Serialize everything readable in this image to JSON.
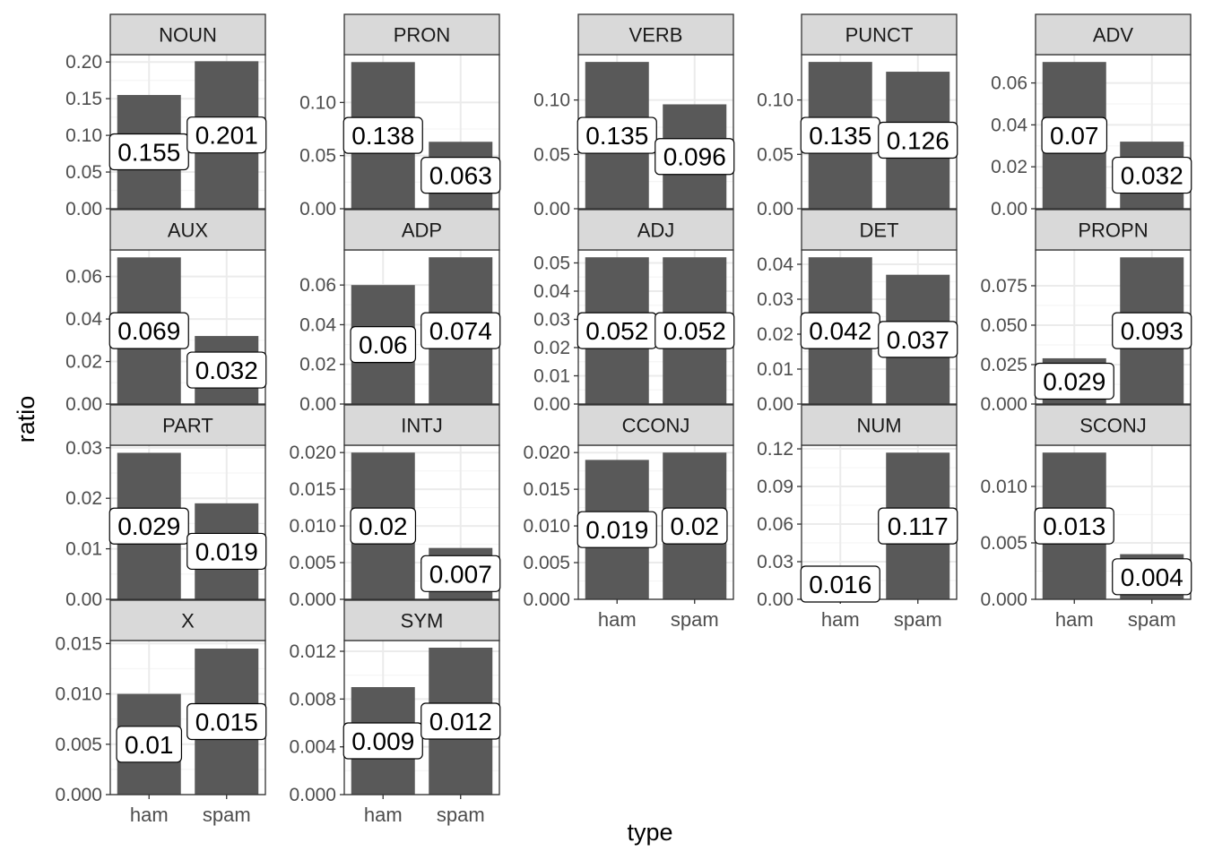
{
  "chart_data": {
    "type": "bar",
    "facet": "wrap",
    "ncol": 5,
    "xlabel": "type",
    "ylabel": "ratio",
    "categories": [
      "ham",
      "spam"
    ],
    "scales": "free_y",
    "grid": true,
    "legend": "none",
    "colors": {
      "bar": "#595959",
      "strip": "#d9d9d9",
      "panel_border": "#333333",
      "grid_major": "#ebebeb",
      "grid_minor": "#f5f5f5"
    },
    "panels": [
      {
        "name": "NOUN",
        "values": [
          0.155,
          0.201
        ],
        "labels": [
          "0.155",
          "0.201"
        ],
        "ylim": [
          0,
          0.21
        ],
        "ticks": [
          0.0,
          0.05,
          0.1,
          0.15,
          0.2
        ],
        "tick_labels": [
          "0.00",
          "0.05",
          "0.10",
          "0.15",
          "0.20"
        ]
      },
      {
        "name": "PRON",
        "values": [
          0.138,
          0.063
        ],
        "labels": [
          "0.138",
          "0.063"
        ],
        "ylim": [
          0,
          0.145
        ],
        "ticks": [
          0.0,
          0.05,
          0.1
        ],
        "tick_labels": [
          "0.00",
          "0.05",
          "0.10"
        ]
      },
      {
        "name": "VERB",
        "values": [
          0.135,
          0.096
        ],
        "labels": [
          "0.135",
          "0.096"
        ],
        "ylim": [
          0,
          0.1417
        ],
        "ticks": [
          0.0,
          0.05,
          0.1
        ],
        "tick_labels": [
          "0.00",
          "0.05",
          "0.10"
        ]
      },
      {
        "name": "PUNCT",
        "values": [
          0.135,
          0.126
        ],
        "labels": [
          "0.135",
          "0.126"
        ],
        "ylim": [
          0,
          0.1417
        ],
        "ticks": [
          0.0,
          0.05,
          0.1
        ],
        "tick_labels": [
          "0.00",
          "0.05",
          "0.10"
        ]
      },
      {
        "name": "ADV",
        "values": [
          0.07,
          0.032
        ],
        "labels": [
          "0.07",
          "0.032"
        ],
        "ylim": [
          0,
          0.0735
        ],
        "ticks": [
          0.0,
          0.02,
          0.04,
          0.06
        ],
        "tick_labels": [
          "0.00",
          "0.02",
          "0.04",
          "0.06"
        ]
      },
      {
        "name": "AUX",
        "values": [
          0.069,
          0.032
        ],
        "labels": [
          "0.069",
          "0.032"
        ],
        "ylim": [
          0,
          0.0725
        ],
        "ticks": [
          0.0,
          0.02,
          0.04,
          0.06
        ],
        "tick_labels": [
          "0.00",
          "0.02",
          "0.04",
          "0.06"
        ]
      },
      {
        "name": "ADP",
        "values": [
          0.06,
          0.074
        ],
        "labels": [
          "0.06",
          "0.074"
        ],
        "ylim": [
          0,
          0.0777
        ],
        "ticks": [
          0.0,
          0.02,
          0.04,
          0.06
        ],
        "tick_labels": [
          "0.00",
          "0.02",
          "0.04",
          "0.06"
        ]
      },
      {
        "name": "ADJ",
        "values": [
          0.052,
          0.052
        ],
        "labels": [
          "0.052",
          "0.052"
        ],
        "ylim": [
          0,
          0.0546
        ],
        "ticks": [
          0.0,
          0.01,
          0.02,
          0.03,
          0.04,
          0.05
        ],
        "tick_labels": [
          "0.00",
          "0.01",
          "0.02",
          "0.03",
          "0.04",
          "0.05"
        ]
      },
      {
        "name": "DET",
        "values": [
          0.042,
          0.037
        ],
        "labels": [
          "0.042",
          "0.037"
        ],
        "ylim": [
          0,
          0.0441
        ],
        "ticks": [
          0.0,
          0.01,
          0.02,
          0.03,
          0.04
        ],
        "tick_labels": [
          "0.00",
          "0.01",
          "0.02",
          "0.03",
          "0.04"
        ]
      },
      {
        "name": "PROPN",
        "values": [
          0.029,
          0.093
        ],
        "labels": [
          "0.029",
          "0.093"
        ],
        "ylim": [
          0,
          0.0977
        ],
        "ticks": [
          0.0,
          0.025,
          0.05,
          0.075
        ],
        "tick_labels": [
          "0.000",
          "0.025",
          "0.050",
          "0.075"
        ]
      },
      {
        "name": "PART",
        "values": [
          0.029,
          0.019
        ],
        "labels": [
          "0.029",
          "0.019"
        ],
        "ylim": [
          0,
          0.0305
        ],
        "ticks": [
          0.0,
          0.01,
          0.02,
          0.03
        ],
        "tick_labels": [
          "0.00",
          "0.01",
          "0.02",
          "0.03"
        ]
      },
      {
        "name": "INTJ",
        "values": [
          0.02,
          0.007
        ],
        "labels": [
          "0.02",
          "0.007"
        ],
        "ylim": [
          0,
          0.021
        ],
        "ticks": [
          0.0,
          0.005,
          0.01,
          0.015,
          0.02
        ],
        "tick_labels": [
          "0.000",
          "0.005",
          "0.010",
          "0.015",
          "0.020"
        ]
      },
      {
        "name": "CCONJ",
        "values": [
          0.019,
          0.02
        ],
        "labels": [
          "0.019",
          "0.02"
        ],
        "ylim": [
          0,
          0.021
        ],
        "ticks": [
          0.0,
          0.005,
          0.01,
          0.015,
          0.02
        ],
        "tick_labels": [
          "0.000",
          "0.005",
          "0.010",
          "0.015",
          "0.020"
        ]
      },
      {
        "name": "NUM",
        "values": [
          0.016,
          0.117
        ],
        "labels": [
          "0.016",
          "0.117"
        ],
        "ylim": [
          0,
          0.1229
        ],
        "ticks": [
          0.0,
          0.03,
          0.06,
          0.09,
          0.12
        ],
        "tick_labels": [
          "0.00",
          "0.03",
          "0.06",
          "0.09",
          "0.12"
        ]
      },
      {
        "name": "SCONJ",
        "values": [
          0.013,
          0.004
        ],
        "labels": [
          "0.013",
          "0.004"
        ],
        "ylim": [
          0,
          0.01365
        ],
        "ticks": [
          0.0,
          0.005,
          0.01
        ],
        "tick_labels": [
          "0.000",
          "0.005",
          "0.010"
        ]
      },
      {
        "name": "X",
        "values": [
          0.01,
          0.0145
        ],
        "labels": [
          "0.01",
          "0.015"
        ],
        "ylim": [
          0,
          0.0153
        ],
        "ticks": [
          0.0,
          0.005,
          0.01,
          0.015
        ],
        "tick_labels": [
          "0.000",
          "0.005",
          "0.010",
          "0.015"
        ]
      },
      {
        "name": "SYM",
        "values": [
          0.009,
          0.0123
        ],
        "labels": [
          "0.009",
          "0.012"
        ],
        "ylim": [
          0,
          0.0129
        ],
        "ticks": [
          0.0,
          0.004,
          0.008,
          0.012
        ],
        "tick_labels": [
          "0.000",
          "0.004",
          "0.008",
          "0.012"
        ]
      }
    ]
  }
}
